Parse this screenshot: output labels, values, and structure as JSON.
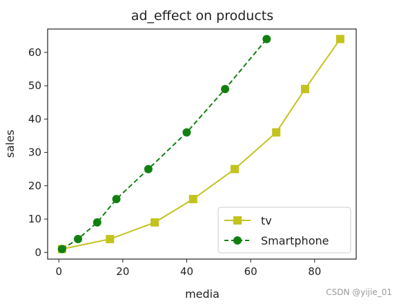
{
  "chart_data": {
    "type": "line",
    "title": "ad_effect on products",
    "xlabel": "media",
    "ylabel": "sales",
    "xlim": [
      -3.5,
      93
    ],
    "ylim": [
      -2,
      67
    ],
    "xticks": [
      0,
      20,
      40,
      60,
      80
    ],
    "yticks": [
      0,
      10,
      20,
      30,
      40,
      50,
      60
    ],
    "grid": false,
    "legend_position": "lower right",
    "series": [
      {
        "name": "tv",
        "color": "#c3c31e",
        "line_style": "solid",
        "marker": "square",
        "x": [
          1,
          16,
          30,
          42,
          55,
          68,
          77,
          88
        ],
        "y": [
          1,
          4,
          9,
          16,
          25,
          36,
          49,
          64
        ]
      },
      {
        "name": "Smartphone",
        "color": "#118011",
        "line_style": "dashed",
        "marker": "circle",
        "x": [
          1,
          6,
          12,
          18,
          28,
          40,
          52,
          65
        ],
        "y": [
          1,
          4,
          9,
          16,
          25,
          36,
          49,
          64
        ]
      }
    ]
  },
  "watermark": "CSDN @yijie_01"
}
